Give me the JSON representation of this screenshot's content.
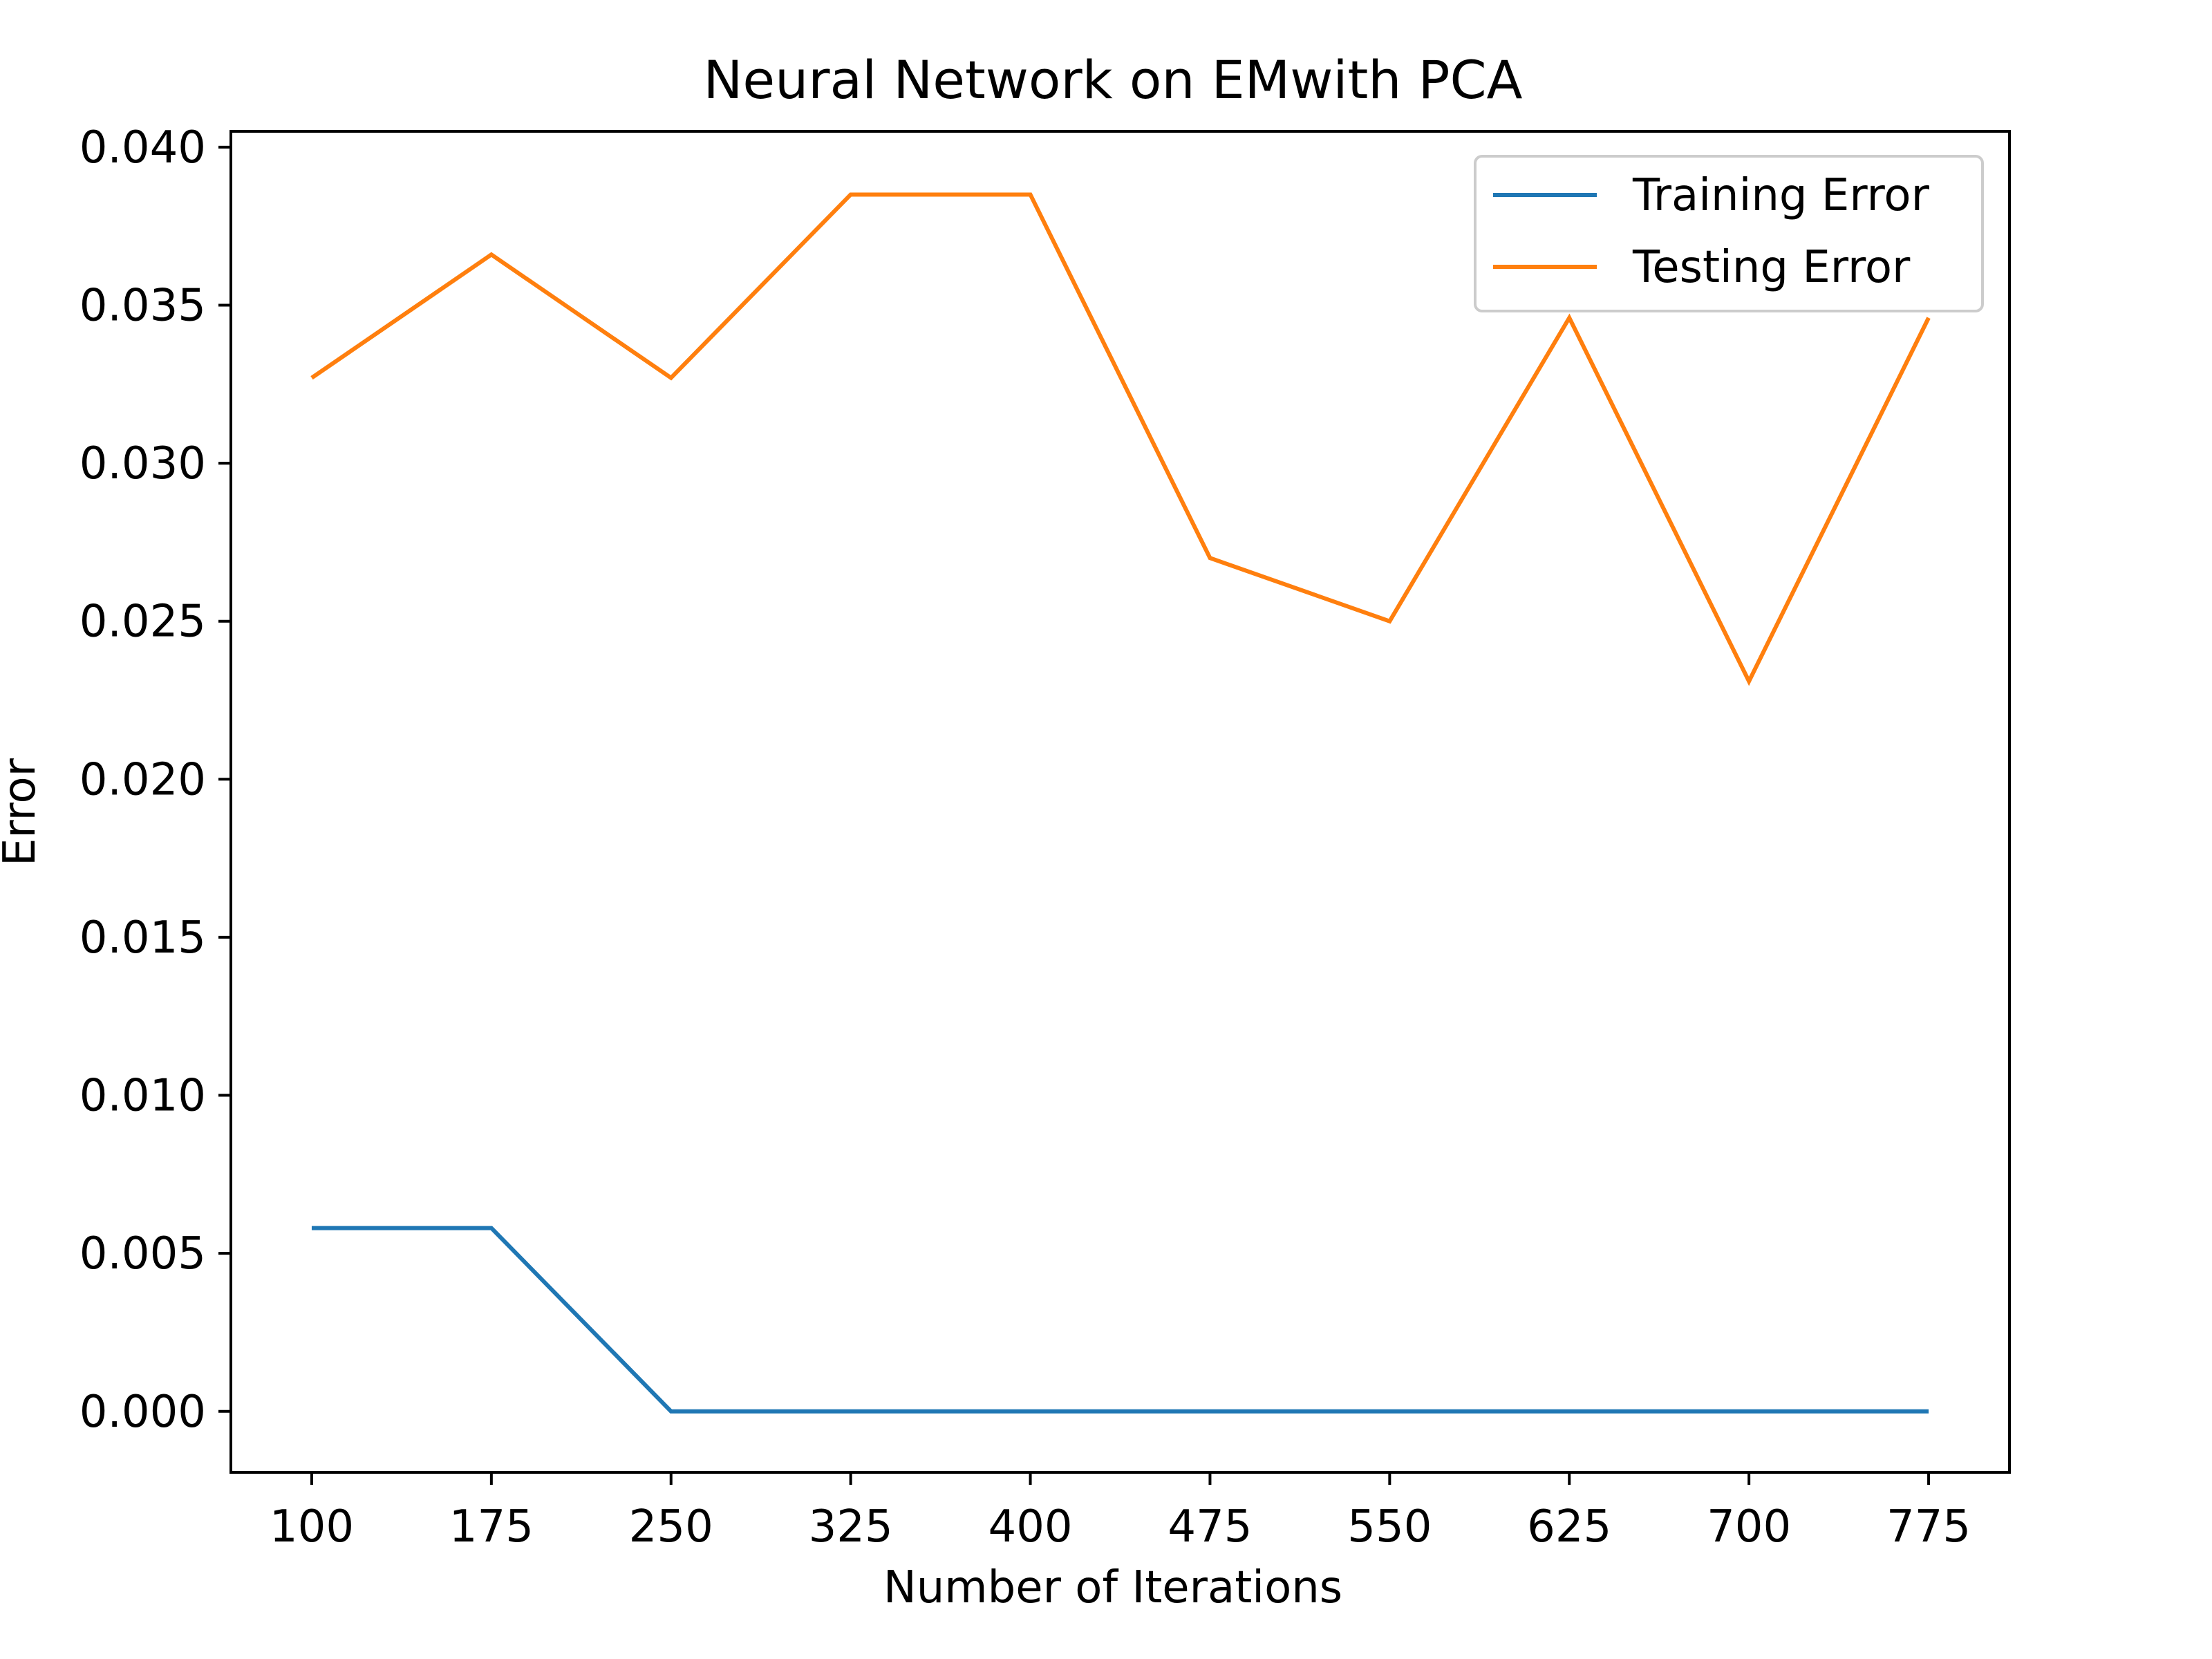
{
  "chart_data": {
    "type": "line",
    "title": "Neural Network on EMwith PCA",
    "xlabel": "Number of Iterations",
    "ylabel": "Error",
    "x": [
      100,
      175,
      250,
      325,
      400,
      475,
      550,
      625,
      700,
      775
    ],
    "xticks": [
      "100",
      "175",
      "250",
      "325",
      "400",
      "475",
      "550",
      "625",
      "700",
      "775"
    ],
    "yticks": [
      "0.000",
      "0.005",
      "0.010",
      "0.015",
      "0.020",
      "0.025",
      "0.030",
      "0.035",
      "0.040"
    ],
    "ytick_values": [
      0.0,
      0.005,
      0.01,
      0.015,
      0.02,
      0.025,
      0.03,
      0.035,
      0.04
    ],
    "xlim": [
      66.25,
      808.75
    ],
    "ylim": [
      -0.00193,
      0.0405
    ],
    "grid": false,
    "legend_position": "upper-right",
    "series": [
      {
        "name": "Training Error",
        "color": "#1f77b4",
        "values": [
          0.0058,
          0.0058,
          0.0,
          0.0,
          0.0,
          0.0,
          0.0,
          0.0,
          0.0,
          0.0
        ]
      },
      {
        "name": "Testing Error",
        "color": "#ff7f0e",
        "values": [
          0.0327,
          0.0366,
          0.0327,
          0.0385,
          0.0385,
          0.027,
          0.025,
          0.0346,
          0.0231,
          0.0346
        ]
      }
    ]
  }
}
